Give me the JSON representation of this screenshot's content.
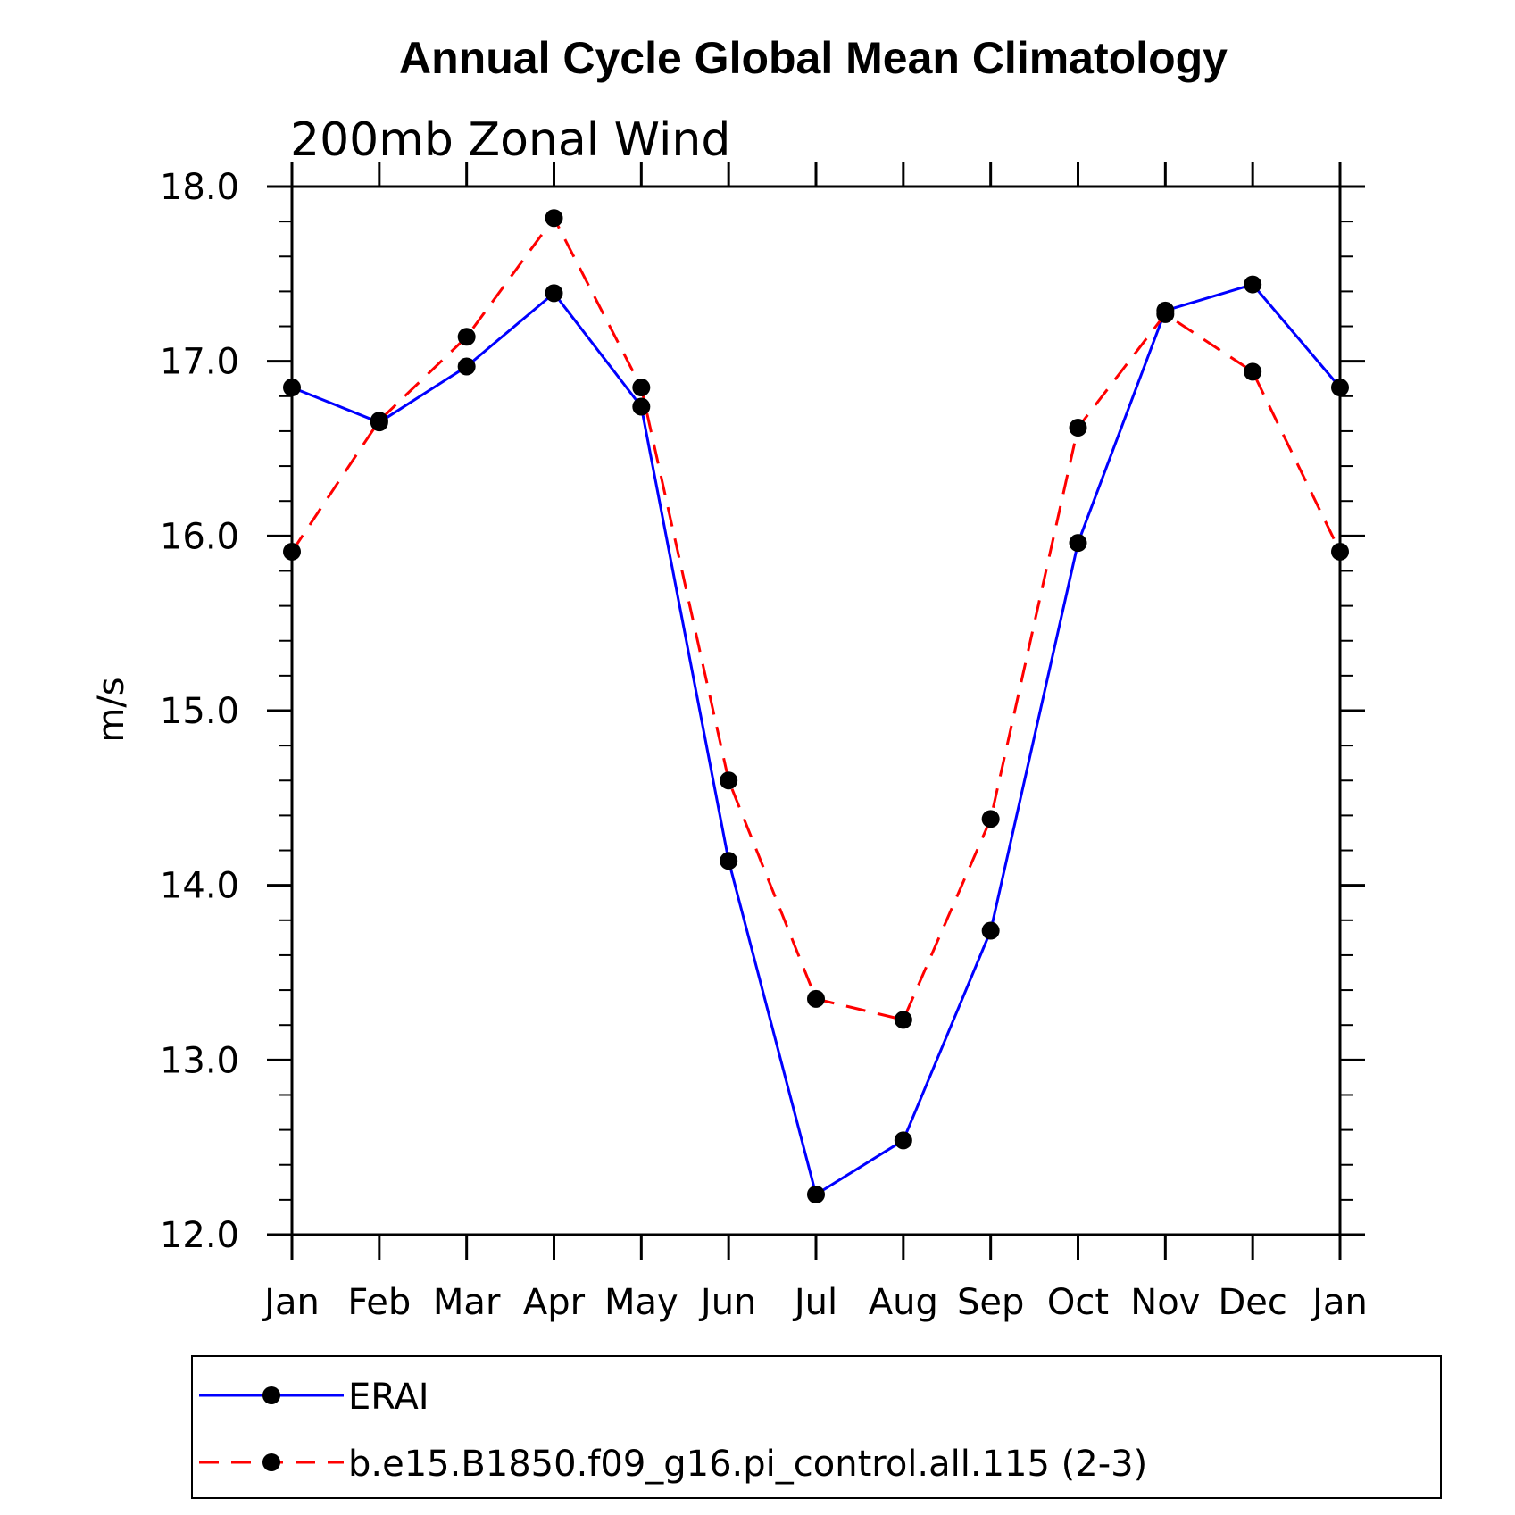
{
  "chart_data": {
    "type": "line",
    "title": "Annual Cycle Global Mean Climatology",
    "subtitle": "200mb Zonal Wind",
    "xlabel": "",
    "ylabel": "m/s",
    "categories": [
      "Jan",
      "Feb",
      "Mar",
      "Apr",
      "May",
      "Jun",
      "Jul",
      "Aug",
      "Sep",
      "Oct",
      "Nov",
      "Dec",
      "Jan"
    ],
    "ylim": [
      12.0,
      18.0
    ],
    "yticks": [
      "12.0",
      "13.0",
      "14.0",
      "15.0",
      "16.0",
      "17.0",
      "18.0"
    ],
    "grid": false,
    "legend_position": "bottom",
    "series": [
      {
        "name": "ERAI",
        "color": "#0000ff",
        "dashed": false,
        "values": [
          16.85,
          16.65,
          16.97,
          17.39,
          16.74,
          14.14,
          12.23,
          12.54,
          13.74,
          15.96,
          17.29,
          17.44,
          16.85
        ]
      },
      {
        "name": "b.e15.B1850.f09_g16.pi_control.all.115 (2-3)",
        "color": "#ff0000",
        "dashed": true,
        "values": [
          15.91,
          16.66,
          17.14,
          17.82,
          16.85,
          14.6,
          13.35,
          13.23,
          14.38,
          16.62,
          17.27,
          16.94,
          15.91
        ]
      }
    ]
  }
}
